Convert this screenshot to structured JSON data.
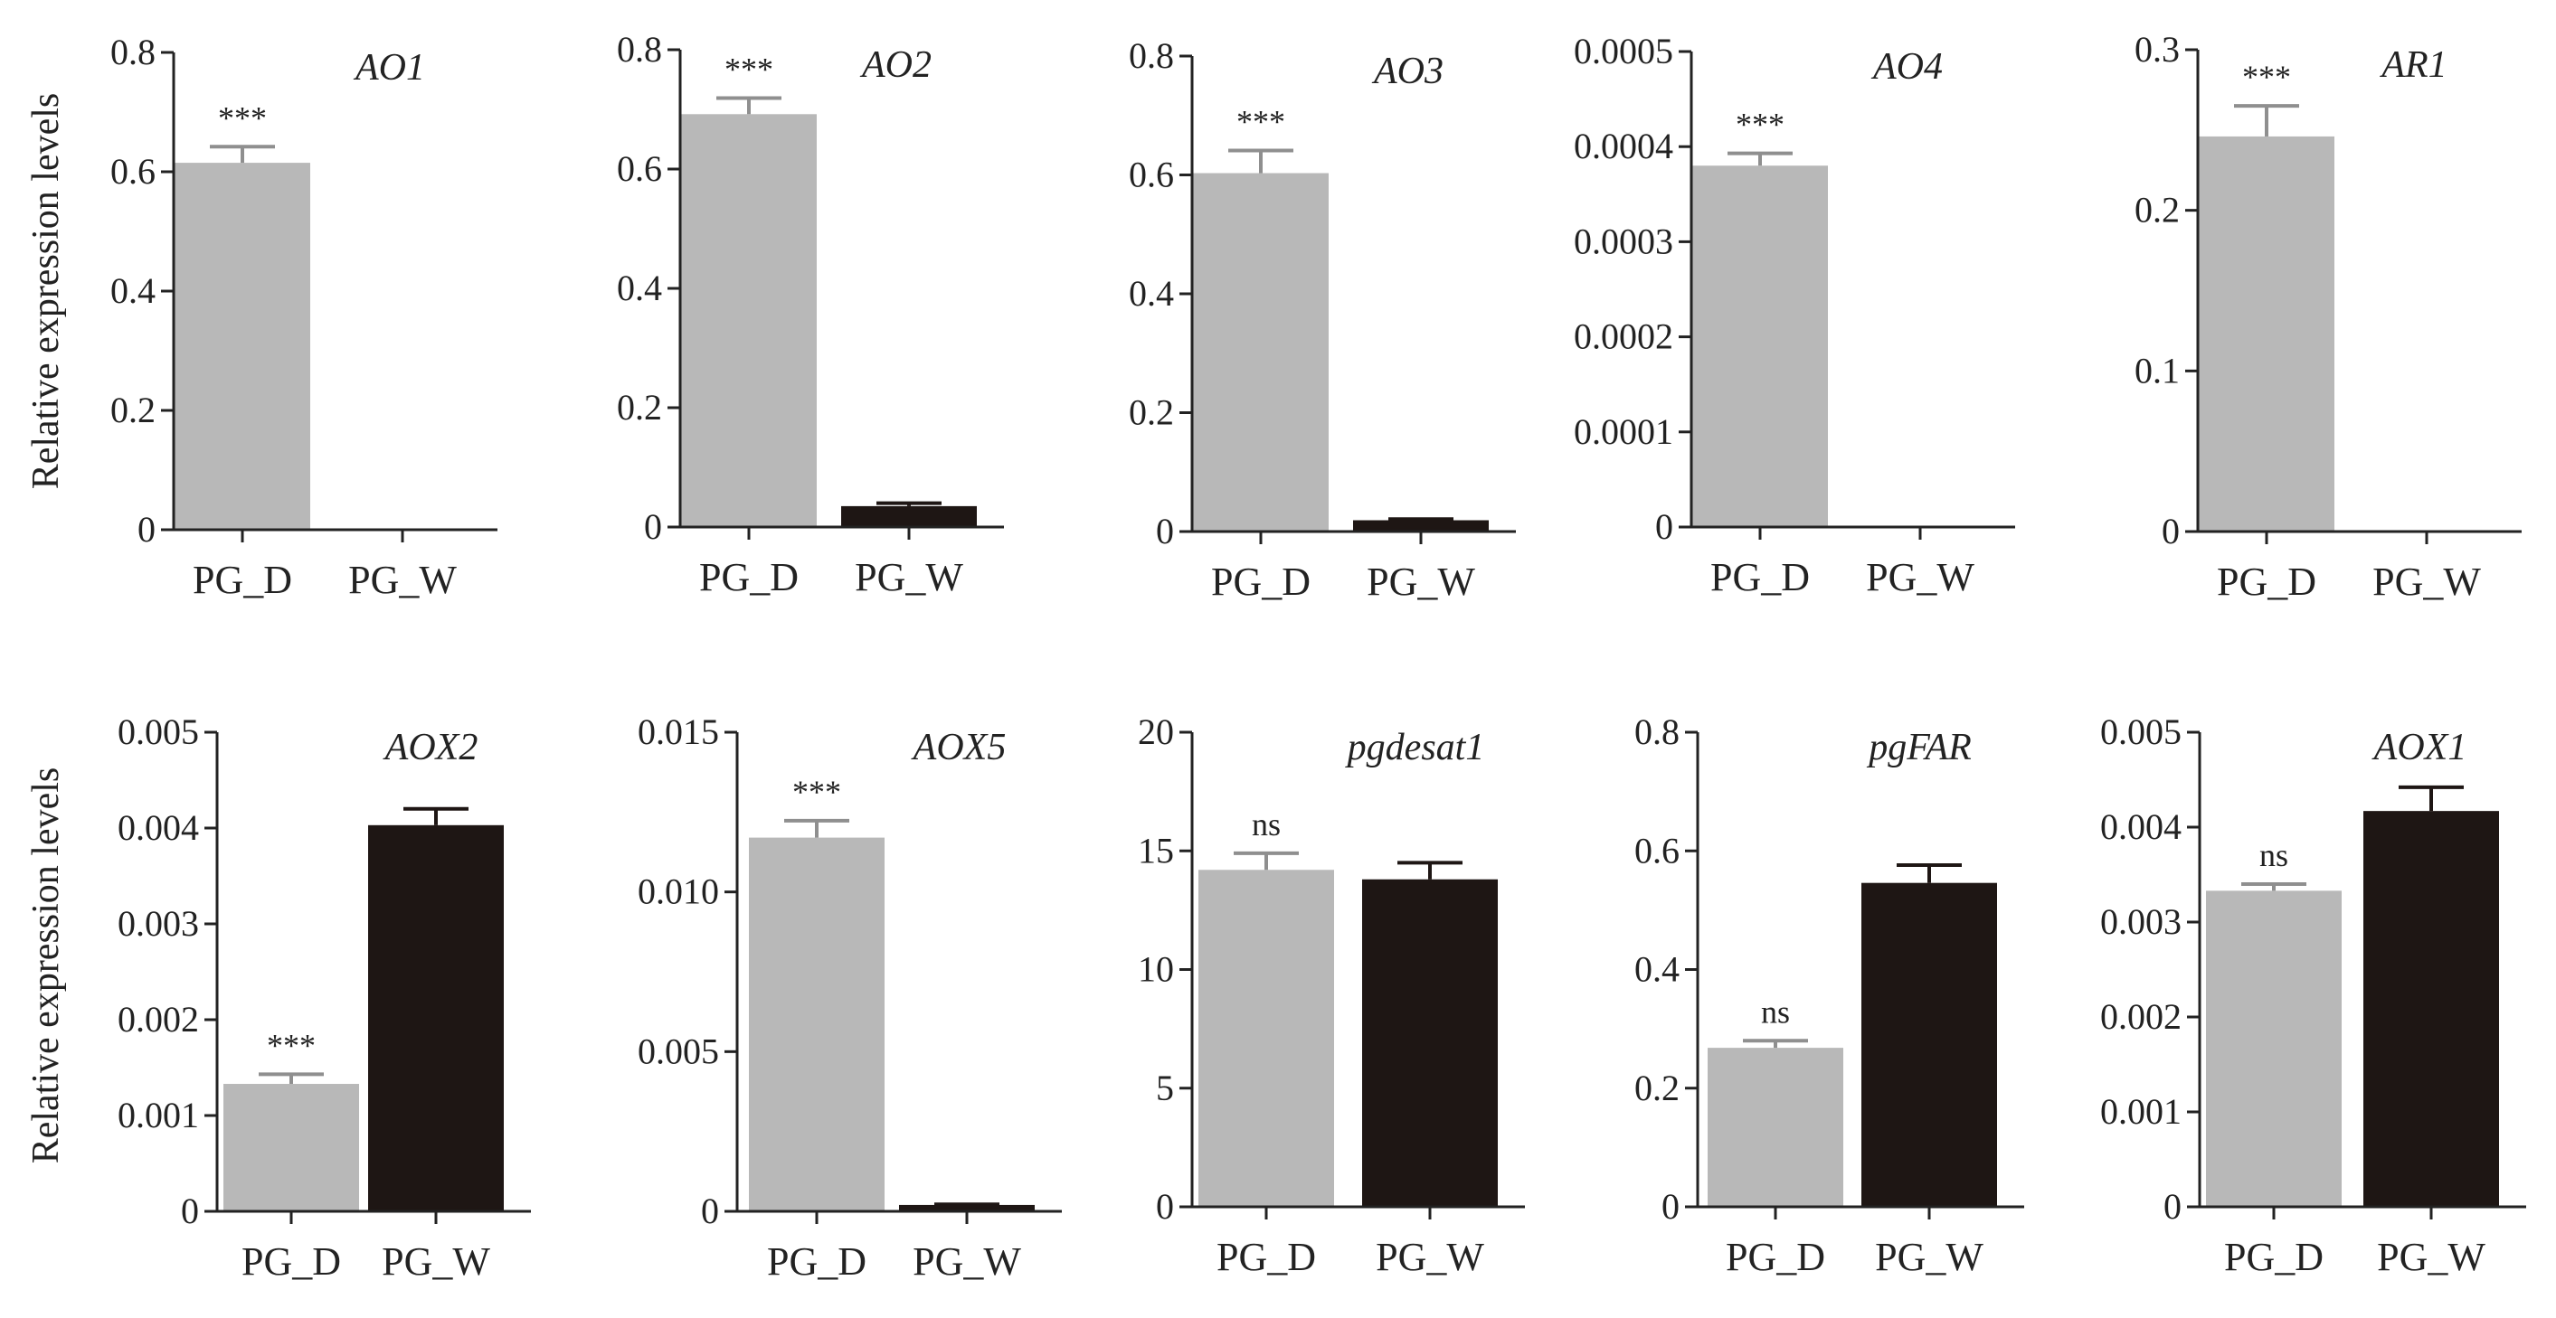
{
  "colors": {
    "PG_D": "#b8b8b8",
    "PG_W": "#1e1614",
    "axis": "#222222"
  },
  "ylabel": "Relative expression levels",
  "chart_data": [
    {
      "type": "bar",
      "title": "AO1",
      "categories": [
        "PG_D",
        "PG_W"
      ],
      "values": [
        0.615,
        0.0
      ],
      "errors": [
        0.027,
        0.0
      ],
      "significance": [
        "***",
        ""
      ],
      "ylim": [
        0,
        0.8
      ],
      "ticks": [
        0,
        0.2,
        0.4,
        0.6,
        0.8
      ],
      "tick_labels": [
        "0",
        "0.2",
        "0.4",
        "0.6",
        "0.8"
      ]
    },
    {
      "type": "bar",
      "title": "AO2",
      "categories": [
        "PG_D",
        "PG_W"
      ],
      "values": [
        0.692,
        0.035
      ],
      "errors": [
        0.027,
        0.005
      ],
      "significance": [
        "***",
        ""
      ],
      "ylim": [
        0,
        0.8
      ],
      "ticks": [
        0,
        0.2,
        0.4,
        0.6,
        0.8
      ],
      "tick_labels": [
        "0",
        "0.2",
        "0.4",
        "0.6",
        "0.8"
      ]
    },
    {
      "type": "bar",
      "title": "AO3",
      "categories": [
        "PG_D",
        "PG_W"
      ],
      "values": [
        0.603,
        0.019
      ],
      "errors": [
        0.038,
        0.002
      ],
      "significance": [
        "***",
        ""
      ],
      "ylim": [
        0,
        0.8
      ],
      "ticks": [
        0,
        0.2,
        0.4,
        0.6,
        0.8
      ],
      "tick_labels": [
        "0",
        "0.2",
        "0.4",
        "0.6",
        "0.8"
      ]
    },
    {
      "type": "bar",
      "title": "AO4",
      "categories": [
        "PG_D",
        "PG_W"
      ],
      "values": [
        0.00038,
        0.0
      ],
      "errors": [
        1.3e-05,
        0.0
      ],
      "significance": [
        "***",
        ""
      ],
      "ylim": [
        0,
        0.0005
      ],
      "ticks": [
        0,
        0.0001,
        0.0002,
        0.0003,
        0.0004,
        0.0005
      ],
      "tick_labels": [
        "0",
        "0.0001",
        "0.0002",
        "0.0003",
        "0.0004",
        "0.0005"
      ]
    },
    {
      "type": "bar",
      "title": "AR1",
      "categories": [
        "PG_D",
        "PG_W"
      ],
      "values": [
        0.246,
        0.0
      ],
      "errors": [
        0.019,
        0.0
      ],
      "significance": [
        "***",
        ""
      ],
      "ylim": [
        0,
        0.3
      ],
      "ticks": [
        0,
        0.1,
        0.2,
        0.3
      ],
      "tick_labels": [
        "0",
        "0.1",
        "0.2",
        "0.3"
      ]
    },
    {
      "type": "bar",
      "title": "AOX2",
      "categories": [
        "PG_D",
        "PG_W"
      ],
      "values": [
        0.00133,
        0.00403
      ],
      "errors": [
        0.0001,
        0.00017
      ],
      "significance": [
        "***",
        ""
      ],
      "ylim": [
        0,
        0.005
      ],
      "ticks": [
        0,
        0.001,
        0.002,
        0.003,
        0.004,
        0.005
      ],
      "tick_labels": [
        "0",
        "0.001",
        "0.002",
        "0.003",
        "0.004",
        "0.005"
      ]
    },
    {
      "type": "bar",
      "title": "AOX5",
      "categories": [
        "PG_D",
        "PG_W"
      ],
      "values": [
        0.0117,
        0.0002
      ],
      "errors": [
        0.00053,
        2e-05
      ],
      "significance": [
        "***",
        ""
      ],
      "ylim": [
        0,
        0.015
      ],
      "ticks": [
        0,
        0.005,
        0.01,
        0.015
      ],
      "tick_labels": [
        "0",
        "0.005",
        "0.010",
        "0.015"
      ]
    },
    {
      "type": "bar",
      "title": "pgdesat1",
      "categories": [
        "PG_D",
        "PG_W"
      ],
      "values": [
        14.2,
        13.8
      ],
      "errors": [
        0.7,
        0.7
      ],
      "significance": [
        "ns",
        ""
      ],
      "ylim": [
        0,
        20
      ],
      "ticks": [
        0,
        5,
        10,
        15,
        20
      ],
      "tick_labels": [
        "0",
        "5",
        "10",
        "15",
        "20"
      ]
    },
    {
      "type": "bar",
      "title": "pgFAR",
      "categories": [
        "PG_D",
        "PG_W"
      ],
      "values": [
        0.268,
        0.546
      ],
      "errors": [
        0.012,
        0.03
      ],
      "significance": [
        "ns",
        ""
      ],
      "ylim": [
        0,
        0.8
      ],
      "ticks": [
        0,
        0.2,
        0.4,
        0.6,
        0.8
      ],
      "tick_labels": [
        "0",
        "0.2",
        "0.4",
        "0.6",
        "0.8"
      ]
    },
    {
      "type": "bar",
      "title": "AOX1",
      "categories": [
        "PG_D",
        "PG_W"
      ],
      "values": [
        0.00333,
        0.00417
      ],
      "errors": [
        7e-05,
        0.00025
      ],
      "significance": [
        "ns",
        ""
      ],
      "ylim": [
        0,
        0.005
      ],
      "ticks": [
        0,
        0.001,
        0.002,
        0.003,
        0.004,
        0.005
      ],
      "tick_labels": [
        "0",
        "0.001",
        "0.002",
        "0.003",
        "0.004",
        "0.005"
      ]
    }
  ]
}
